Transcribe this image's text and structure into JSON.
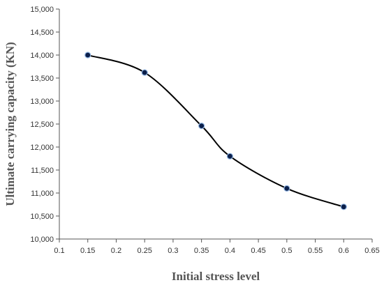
{
  "chart_data": {
    "type": "line",
    "title": "",
    "xlabel": "Initial stress level",
    "ylabel": "Ultimate carrying capacity (KN)",
    "xlim": [
      0.1,
      0.65
    ],
    "ylim": [
      10000,
      15000
    ],
    "x_ticks": [
      "0.1",
      "0.15",
      "0.2",
      "0.25",
      "0.3",
      "0.35",
      "0.4",
      "0.45",
      "0.5",
      "0.55",
      "0.6",
      "0.65"
    ],
    "y_ticks": [
      "10,000",
      "10,500",
      "11,000",
      "11,500",
      "12,000",
      "12,500",
      "13,000",
      "13,500",
      "14,000",
      "14,500",
      "15,000"
    ],
    "grid": false,
    "legend": "none",
    "series": [
      {
        "x": [
          0.15,
          0.25,
          0.35,
          0.4,
          0.5,
          0.6
        ],
        "y": [
          14000,
          13620,
          12460,
          11800,
          11100,
          10700
        ],
        "line_color": "#000000",
        "marker_color": "#0b1f4a"
      }
    ]
  }
}
